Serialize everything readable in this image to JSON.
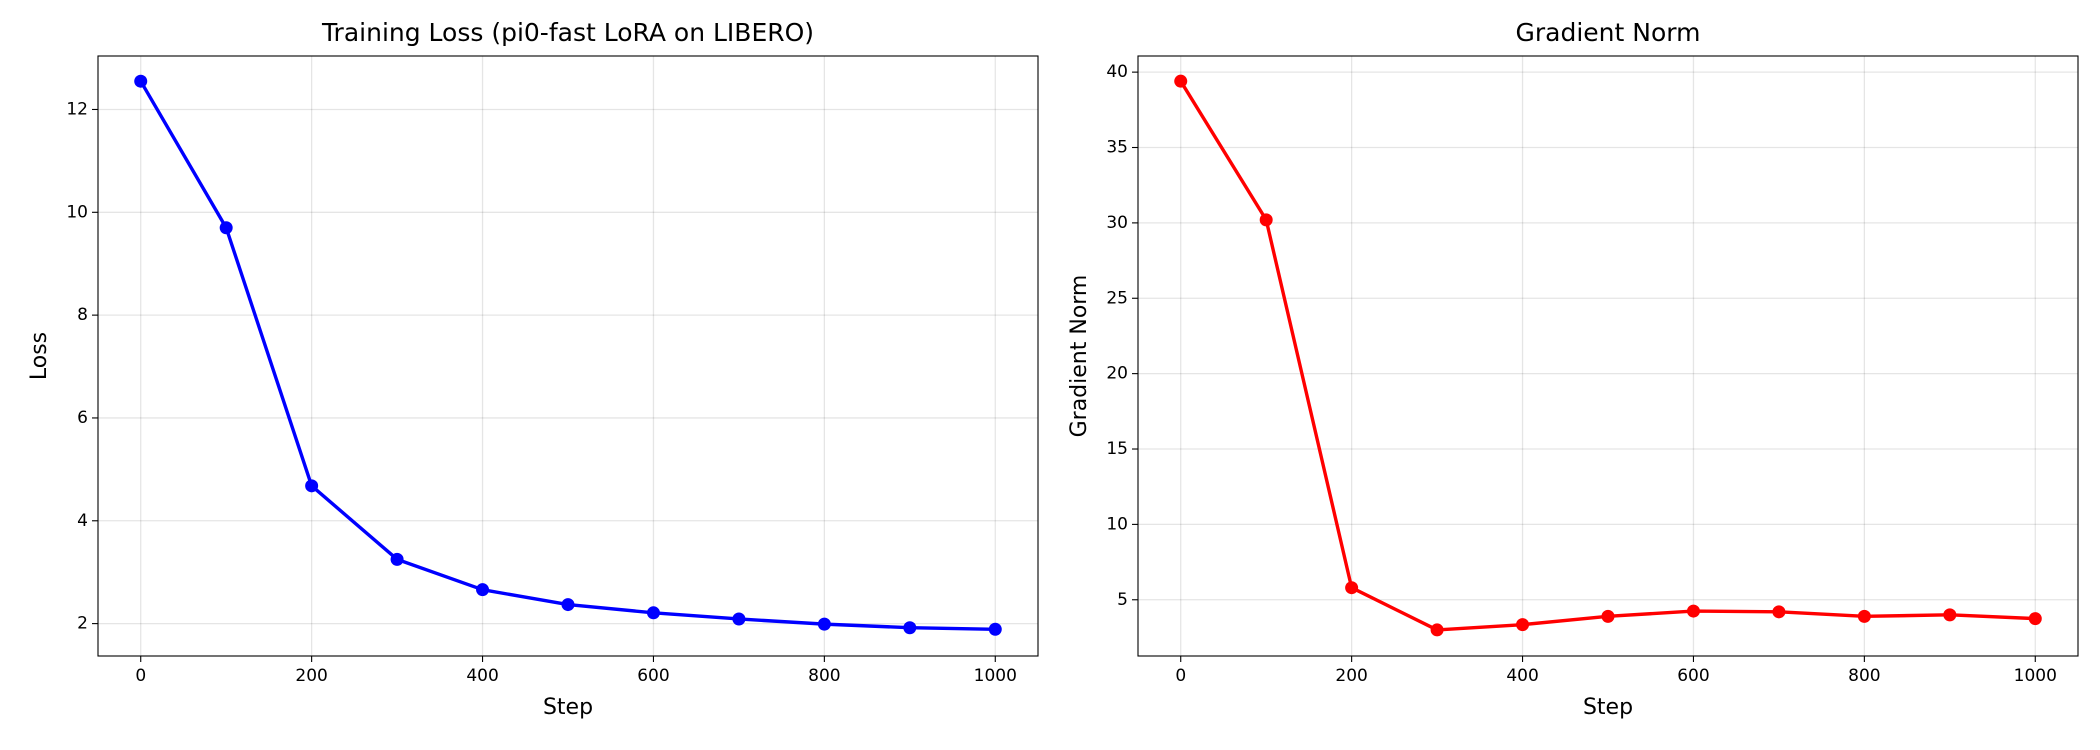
{
  "chart_data": [
    {
      "type": "line",
      "title": "Training Loss (pi0-fast LoRA on LIBERO)",
      "x_label": "Step",
      "y_label": "Loss",
      "x": [
        0,
        100,
        200,
        300,
        400,
        500,
        600,
        700,
        800,
        900,
        1000
      ],
      "series": [
        {
          "name": "Loss",
          "color": "#0000ff",
          "values": [
            12.55,
            9.7,
            4.68,
            3.25,
            2.66,
            2.37,
            2.21,
            2.09,
            1.99,
            1.92,
            1.89
          ]
        }
      ],
      "xlim": [
        -50,
        1050
      ],
      "xticks": [
        0,
        200,
        400,
        600,
        800,
        1000
      ],
      "ylim": [
        1.37,
        13.04
      ],
      "yticks": [
        2,
        4,
        6,
        8,
        10,
        12
      ],
      "grid": true,
      "marker": "circle"
    },
    {
      "type": "line",
      "title": "Gradient Norm",
      "x_label": "Step",
      "y_label": "Gradient Norm",
      "x": [
        0,
        100,
        200,
        300,
        400,
        500,
        600,
        700,
        800,
        900,
        1000
      ],
      "series": [
        {
          "name": "Gradient Norm",
          "color": "#ff0000",
          "values": [
            39.4,
            30.2,
            5.8,
            3.0,
            3.35,
            3.9,
            4.25,
            4.2,
            3.9,
            4.0,
            3.75
          ]
        }
      ],
      "xlim": [
        -50,
        1050
      ],
      "xticks": [
        0,
        200,
        400,
        600,
        800,
        1000
      ],
      "ylim": [
        1.27,
        41.07
      ],
      "yticks": [
        5,
        10,
        15,
        20,
        25,
        30,
        35,
        40
      ],
      "grid": true,
      "marker": "circle"
    }
  ]
}
